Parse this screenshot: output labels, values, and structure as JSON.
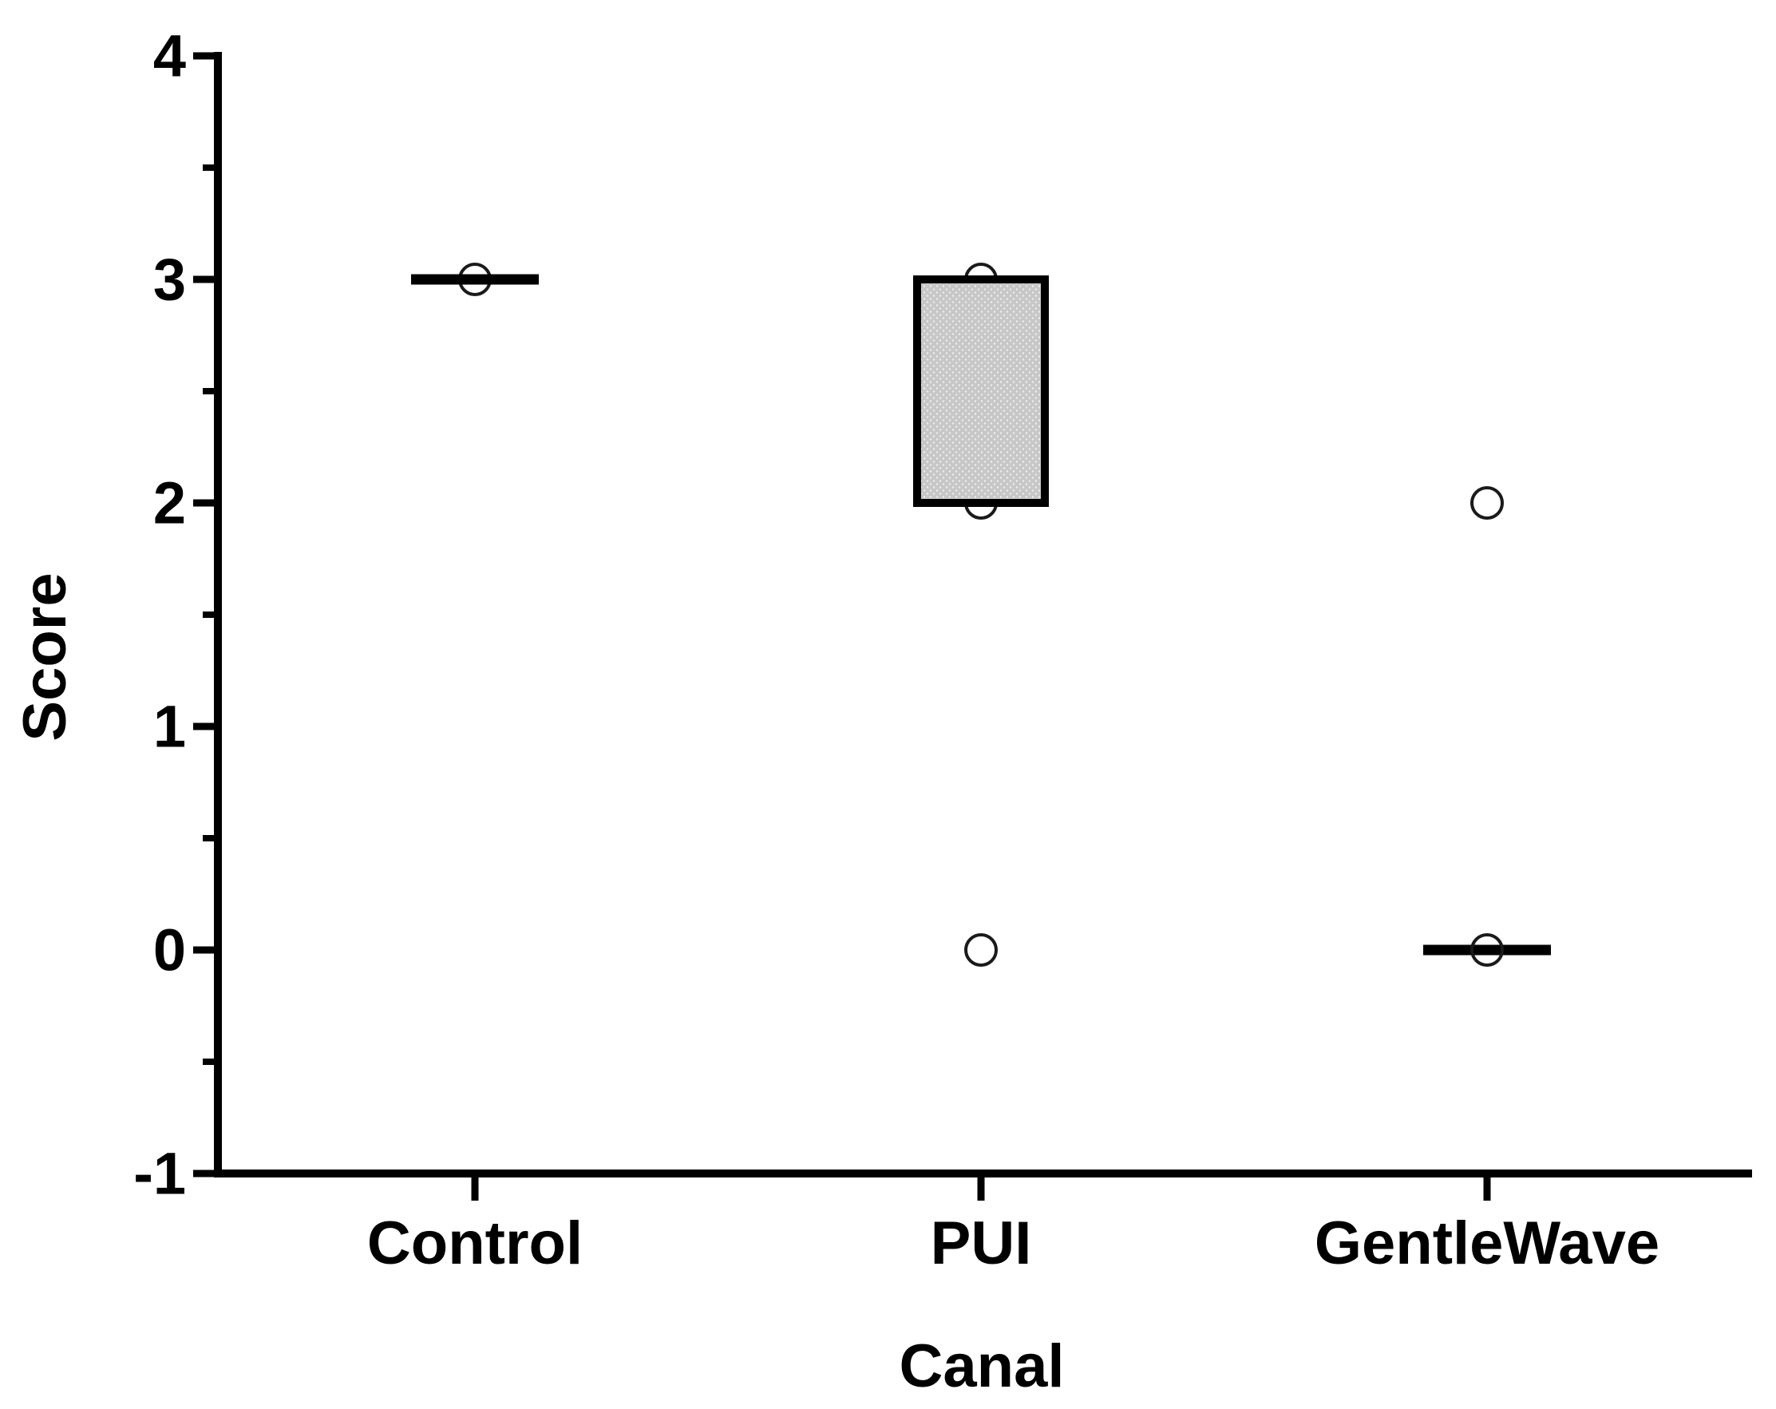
{
  "chart_data": {
    "type": "box",
    "title": "",
    "xlabel": "Canal",
    "ylabel": "Score",
    "categories": [
      "Control",
      "PUI",
      "GentleWave"
    ],
    "ylim": [
      -1,
      4
    ],
    "ytick_major": [
      4,
      3,
      2,
      1,
      0,
      -1
    ],
    "ytick_minor": [
      3.5,
      2.5,
      1.5,
      0.5,
      -0.5
    ],
    "grid": false,
    "legend": "none",
    "style": {
      "axis_color": "#000000",
      "box_fill": "#c7c7c7",
      "box_stipple_dot": "#eeeeee",
      "box_border": "#000000",
      "median_color": "#000000",
      "marker": "open-circle",
      "marker_color": "#1a1a1a",
      "background": "#ffffff"
    },
    "groups": [
      {
        "label": "Control",
        "median": 3,
        "box": null,
        "points": [
          3
        ],
        "outliers": []
      },
      {
        "label": "PUI",
        "median": null,
        "box": {
          "q1": 2,
          "q3": 3
        },
        "points": [
          3,
          2
        ],
        "outliers": [
          0
        ]
      },
      {
        "label": "GentleWave",
        "median": 0,
        "box": null,
        "points": [
          2
        ],
        "outliers": [
          0
        ]
      }
    ]
  }
}
